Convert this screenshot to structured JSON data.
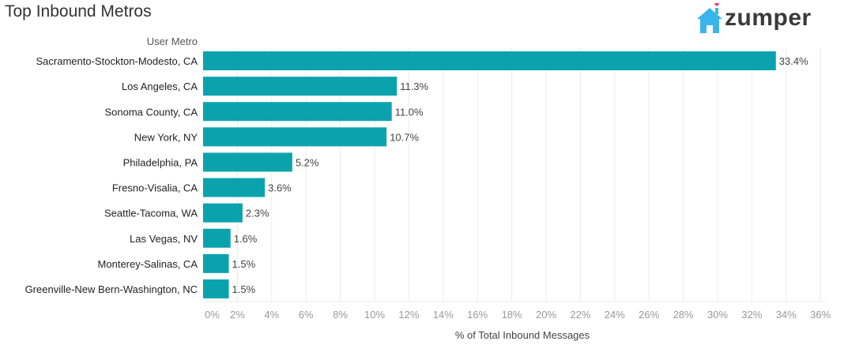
{
  "title": "Top Inbound Metros",
  "logo": {
    "text": "zumper",
    "house_color": "#3ab5ec",
    "heart_color": "#e8336b"
  },
  "chart_data": {
    "type": "bar",
    "orientation": "horizontal",
    "row_header": "User Metro",
    "xlabel": "% of Total Inbound Messages",
    "categories": [
      "Sacramento-Stockton-Modesto, CA",
      "Los Angeles, CA",
      "Sonoma County, CA",
      "New York, NY",
      "Philadelphia, PA",
      "Fresno-Visalia, CA",
      "Seattle-Tacoma, WA",
      "Las Vegas, NV",
      "Monterey-Salinas, CA",
      "Greenville-New Bern-Washington, NC"
    ],
    "values": [
      33.4,
      11.3,
      11.0,
      10.7,
      5.2,
      3.6,
      2.3,
      1.6,
      1.5,
      1.5
    ],
    "data_labels": [
      "33.4%",
      "11.3%",
      "11.0%",
      "10.7%",
      "5.2%",
      "3.6%",
      "2.3%",
      "1.6%",
      "1.5%",
      "1.5%"
    ],
    "xlim": [
      0,
      36
    ],
    "xticks": [
      0,
      2,
      4,
      6,
      8,
      10,
      12,
      14,
      16,
      18,
      20,
      22,
      24,
      26,
      28,
      30,
      32,
      34,
      36
    ],
    "xtick_labels": [
      "0%",
      "2%",
      "4%",
      "6%",
      "8%",
      "10%",
      "12%",
      "14%",
      "16%",
      "18%",
      "20%",
      "22%",
      "24%",
      "26%",
      "28%",
      "30%",
      "32%",
      "34%",
      "36%"
    ],
    "grid": true,
    "bar_color": "#0aa3ad"
  }
}
